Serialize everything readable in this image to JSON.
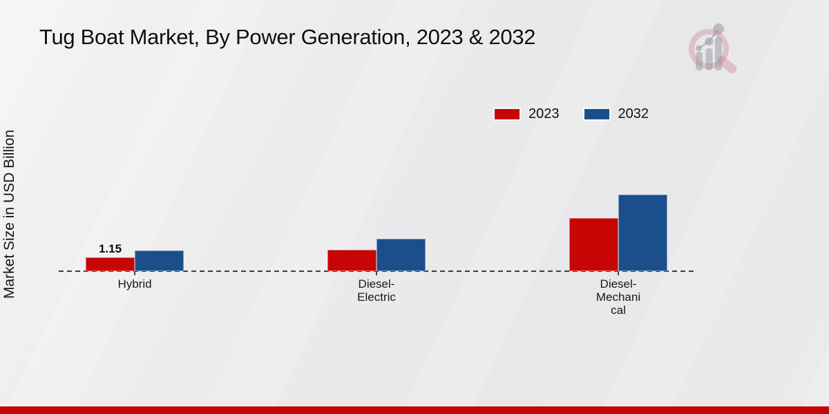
{
  "title": "Tug Boat Market, By Power Generation, 2023 & 2032",
  "y_axis_label": "Market Size in USD Billion",
  "legend": {
    "position": "top-right",
    "items": [
      {
        "label": "2023",
        "color": "#c70505"
      },
      {
        "label": "2032",
        "color": "#1a4f8b"
      }
    ]
  },
  "chart_data": {
    "type": "bar",
    "title": "Tug Boat Market, By Power Generation, 2023 & 2032",
    "xlabel": "",
    "ylabel": "Market Size in USD Billion",
    "grid": false,
    "legend_position": "top-right",
    "categories": [
      "Hybrid",
      "Diesel-Electric",
      "Diesel-Mechanical"
    ],
    "category_label_lines": [
      [
        "Hybrid"
      ],
      [
        "Diesel-",
        "Electric"
      ],
      [
        "Diesel-",
        "Mechani",
        "cal"
      ]
    ],
    "series": [
      {
        "name": "2023",
        "color": "#c70505",
        "values": [
          1.15,
          1.78,
          4.43
        ]
      },
      {
        "name": "2032",
        "color": "#1a4f8b",
        "values": [
          1.72,
          2.7,
          6.38
        ]
      }
    ],
    "value_labels": [
      {
        "series": "2023",
        "category": "Hybrid",
        "text": "1.15"
      }
    ]
  },
  "logo_icon": "magnifier-bar-chart-logo",
  "footer": {
    "bar_color": "#c40606"
  }
}
